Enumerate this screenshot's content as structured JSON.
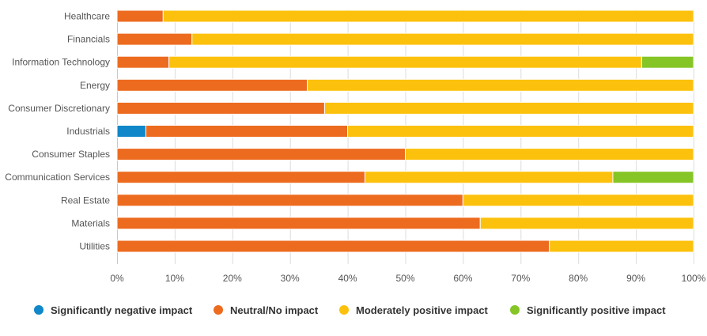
{
  "chart_data": {
    "type": "bar",
    "orientation": "horizontal",
    "stacked": true,
    "categories": [
      "Healthcare",
      "Financials",
      "Information Technology",
      "Energy",
      "Consumer Discretionary",
      "Industrials",
      "Consumer Staples",
      "Communication Services",
      "Real Estate",
      "Materials",
      "Utilities"
    ],
    "series": [
      {
        "name": "Significantly negative impact",
        "color": "#0f87c8",
        "values": [
          0,
          0,
          0,
          0,
          0,
          5,
          0,
          0,
          0,
          0,
          0
        ]
      },
      {
        "name": "Neutral/No impact",
        "color": "#ec6b1f",
        "values": [
          8,
          13,
          9,
          33,
          36,
          35,
          50,
          43,
          60,
          63,
          75
        ]
      },
      {
        "name": "Moderately positive impact",
        "color": "#fcc10c",
        "values": [
          92,
          87,
          82,
          67,
          64,
          60,
          50,
          43,
          40,
          37,
          25
        ]
      },
      {
        "name": "Significantly positive impact",
        "color": "#85c525",
        "values": [
          0,
          0,
          9,
          0,
          0,
          0,
          0,
          14,
          0,
          0,
          0
        ]
      }
    ],
    "xlim": [
      0,
      100
    ],
    "x_ticks": [
      "0%",
      "10%",
      "20%",
      "30%",
      "40%",
      "50%",
      "60%",
      "70%",
      "80%",
      "90%",
      "100%"
    ],
    "grid": true,
    "legend_position": "bottom"
  }
}
